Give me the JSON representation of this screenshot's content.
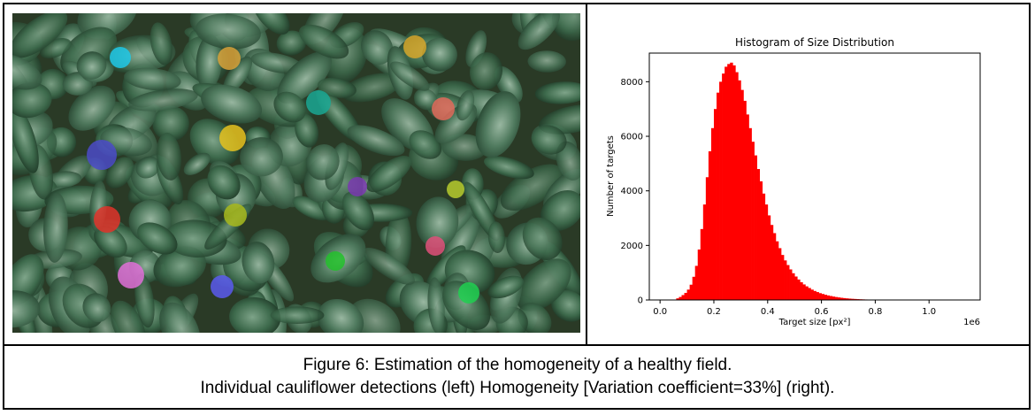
{
  "figure": {
    "caption_line1": "Figure 6: Estimation of the homogeneity of a healthy field.",
    "caption_line2": "Individual cauliflower detections (left) Homogeneity [Variation coefficient=33%] (right)."
  },
  "detections": [
    {
      "color": "#1ec8e8"
    },
    {
      "color": "#d8a23a"
    },
    {
      "color": "#d6a62a"
    },
    {
      "color": "#1aa894"
    },
    {
      "color": "#e06a5a"
    },
    {
      "color": "#e6c21e"
    },
    {
      "color": "#4b4bc8"
    },
    {
      "color": "#7a3ab0"
    },
    {
      "color": "#b7cc2e"
    },
    {
      "color": "#e0342a"
    },
    {
      "color": "#a8b81c"
    },
    {
      "color": "#e0507a"
    },
    {
      "color": "#22c02a"
    },
    {
      "color": "#e070d8"
    },
    {
      "color": "#5a5aee"
    },
    {
      "color": "#20d050"
    }
  ],
  "chart_data": {
    "type": "bar",
    "title": "Histogram of Size Distribution",
    "xlabel": "Target size [px²]",
    "ylabel": "Number of targets",
    "x_offset_label": "1e6",
    "bar_color": "#ff0000",
    "xlim": [
      -0.04,
      1.19
    ],
    "ylim": [
      0,
      9050
    ],
    "x_ticks": [
      0.0,
      0.2,
      0.4,
      0.6,
      0.8,
      1.0
    ],
    "x_tick_labels": [
      "0.0",
      "0.2",
      "0.4",
      "0.6",
      "0.8",
      "1.0"
    ],
    "y_ticks": [
      0,
      2000,
      4000,
      6000,
      8000
    ],
    "y_tick_labels": [
      "0",
      "2000",
      "4000",
      "6000",
      "8000"
    ],
    "bins_start": 0.05,
    "bin_width": 0.01,
    "counts": [
      10,
      60,
      110,
      180,
      260,
      380,
      560,
      850,
      1250,
      1850,
      2600,
      3500,
      4500,
      5450,
      6300,
      7000,
      7600,
      8000,
      8300,
      8550,
      8650,
      8700,
      8600,
      8350,
      8050,
      7700,
      7300,
      6800,
      6300,
      5800,
      5300,
      4800,
      4350,
      3900,
      3500,
      3100,
      2750,
      2450,
      2150,
      1900,
      1650,
      1450,
      1280,
      1120,
      980,
      860,
      750,
      650,
      570,
      500,
      440,
      380,
      330,
      290,
      250,
      220,
      190,
      165,
      145,
      125,
      108,
      93,
      80,
      69,
      59,
      50,
      43,
      37,
      31,
      26,
      22,
      18,
      15,
      13,
      11,
      9,
      7,
      6,
      5,
      4,
      3,
      3,
      2,
      2,
      1,
      1
    ]
  }
}
